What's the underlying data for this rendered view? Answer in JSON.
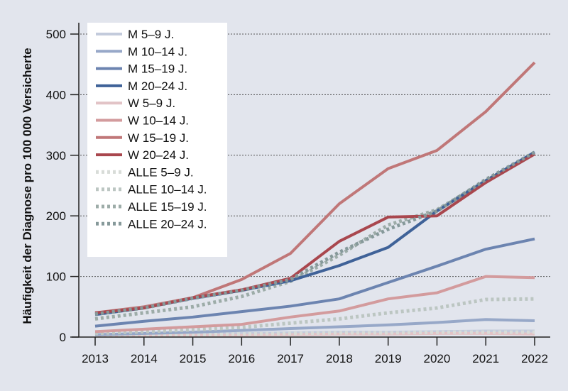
{
  "chart_data": {
    "type": "line",
    "title": "",
    "xlabel": "",
    "ylabel": "Häufigkeit der Diagnose pro 100 000 Versicherte",
    "ylim": [
      0,
      500
    ],
    "yticks": [
      0,
      100,
      200,
      300,
      400,
      500
    ],
    "ytick_labels": [
      "0",
      "100",
      "200",
      "300",
      "400",
      "500"
    ],
    "grid": "horizontal dotted",
    "legend_position": "top-left",
    "x": [
      2013,
      2014,
      2015,
      2016,
      2017,
      2018,
      2019,
      2020,
      2021,
      2022
    ],
    "xtick_labels": [
      "2013",
      "2014",
      "2015",
      "2016",
      "2017",
      "2018",
      "2019",
      "2020",
      "2021",
      "2022"
    ],
    "series": [
      {
        "name": "M 5–9 J.",
        "color": "#c3cbdc",
        "style": "solid",
        "values": [
          3,
          4,
          5,
          6,
          7,
          8,
          8,
          9,
          10,
          10
        ]
      },
      {
        "name": "M 10–14 J.",
        "color": "#97a8c8",
        "style": "solid",
        "values": [
          4,
          6,
          8,
          11,
          14,
          17,
          20,
          24,
          29,
          27
        ]
      },
      {
        "name": "M 15–19 J.",
        "color": "#6c84b0",
        "style": "solid",
        "values": [
          18,
          26,
          33,
          42,
          51,
          63,
          90,
          117,
          145,
          162
        ]
      },
      {
        "name": "M 20–24 J.",
        "color": "#3f6298",
        "style": "solid",
        "values": [
          37,
          48,
          64,
          77,
          93,
          118,
          148,
          208,
          258,
          305
        ]
      },
      {
        "name": "W 5–9 J.",
        "color": "#e2c3c6",
        "style": "solid",
        "values": [
          2,
          3,
          3,
          3,
          4,
          5,
          5,
          6,
          6,
          5
        ]
      },
      {
        "name": "W 10–14 J.",
        "color": "#d39b9d",
        "style": "solid",
        "values": [
          9,
          13,
          17,
          21,
          33,
          43,
          63,
          73,
          100,
          98
        ]
      },
      {
        "name": "W 15–19 J.",
        "color": "#c07778",
        "style": "solid",
        "values": [
          40,
          50,
          65,
          95,
          138,
          220,
          278,
          308,
          372,
          453
        ]
      },
      {
        "name": "W 20–24 J.",
        "color": "#a9474e",
        "style": "solid",
        "values": [
          40,
          48,
          65,
          78,
          97,
          158,
          198,
          200,
          255,
          302
        ]
      },
      {
        "name": "ALLE 5–9 J.",
        "color": "#d8dcd8",
        "style": "dotted",
        "values": [
          3,
          4,
          4,
          5,
          6,
          7,
          7,
          8,
          8,
          8
        ]
      },
      {
        "name": "ALLE 10–14 J.",
        "color": "#bcc6c2",
        "style": "dotted",
        "values": [
          6,
          9,
          12,
          16,
          23,
          30,
          40,
          48,
          62,
          63
        ]
      },
      {
        "name": "ALLE 15–19 J.",
        "color": "#9daca8",
        "style": "dotted",
        "values": [
          30,
          40,
          50,
          67,
          92,
          135,
          185,
          210,
          258,
          304
        ]
      },
      {
        "name": "ALLE 20–24 J.",
        "color": "#86999a",
        "style": "dotted",
        "values": [
          38,
          48,
          64,
          77,
          95,
          140,
          178,
          208,
          260,
          305
        ]
      }
    ]
  }
}
